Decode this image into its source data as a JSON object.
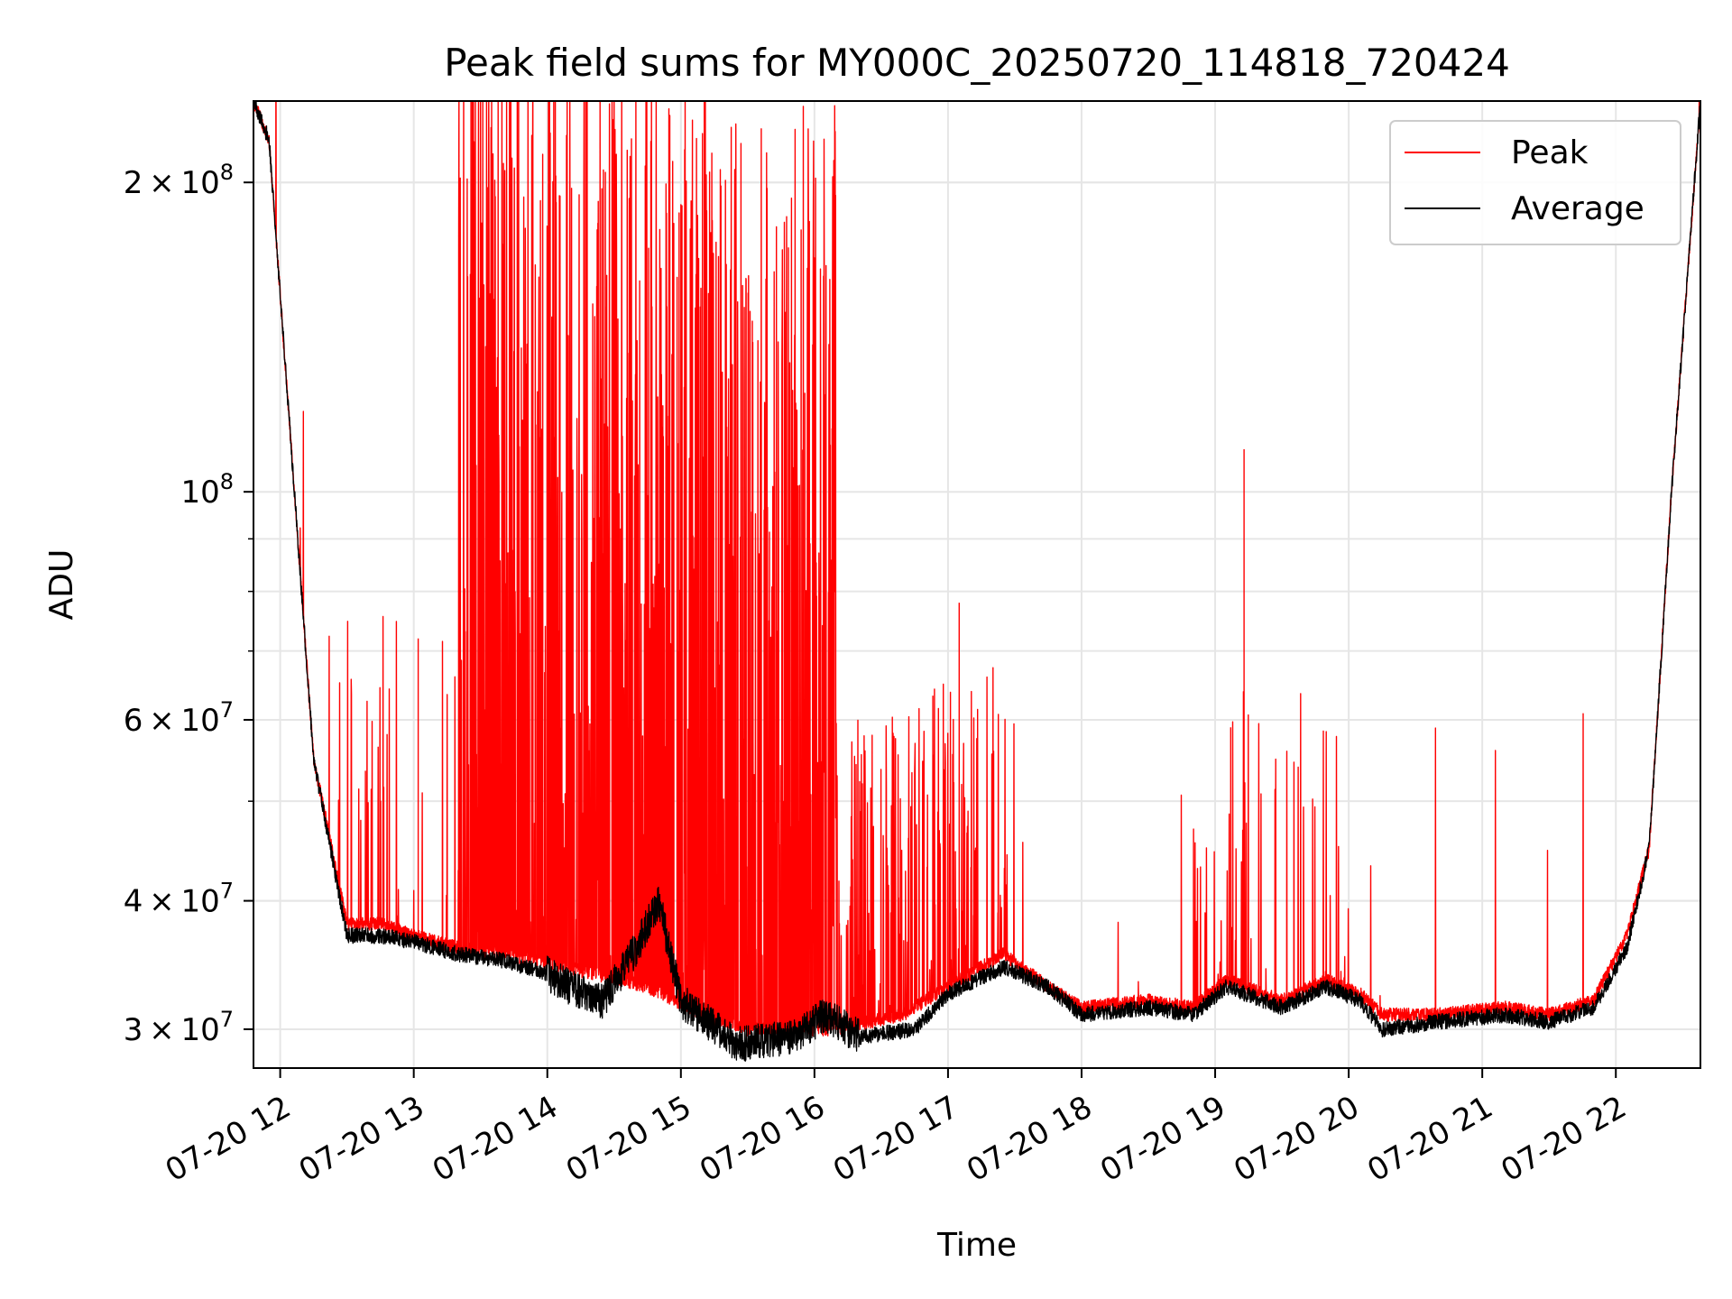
{
  "chart_data": {
    "type": "line",
    "title": "Peak field sums for MY000C_20250720_114818_720424",
    "xlabel": "Time",
    "ylabel": "ADU",
    "yscale": "log",
    "ylim": [
      27500000,
      240000000
    ],
    "xlim": [
      "2025-07-20 11:48",
      "2025-07-20 22:38"
    ],
    "grid": true,
    "legend_position": "top-right",
    "x_ticks": [
      "07-20 12",
      "07-20 13",
      "07-20 14",
      "07-20 15",
      "07-20 16",
      "07-20 17",
      "07-20 18",
      "07-20 19",
      "07-20 20",
      "07-20 21",
      "07-20 22"
    ],
    "x_tick_times": [
      "2025-07-20 12:00",
      "2025-07-20 13:00",
      "2025-07-20 14:00",
      "2025-07-20 15:00",
      "2025-07-20 16:00",
      "2025-07-20 17:00",
      "2025-07-20 18:00",
      "2025-07-20 19:00",
      "2025-07-20 20:00",
      "2025-07-20 21:00",
      "2025-07-20 22:00"
    ],
    "y_major_ticks": [
      {
        "value": 100000000,
        "mantissa": "",
        "exp": "8",
        "label": "10^8"
      },
      {
        "value": 200000000,
        "mantissa": "2",
        "exp": "8",
        "label": "2×10^8"
      },
      {
        "value": 30000000,
        "mantissa": "3",
        "exp": "7",
        "label": "3×10^7"
      },
      {
        "value": 40000000,
        "mantissa": "4",
        "exp": "7",
        "label": "4×10^7"
      },
      {
        "value": 60000000,
        "mantissa": "6",
        "exp": "7",
        "label": "6×10^7"
      }
    ],
    "y_minor_ticks": [
      30000000,
      40000000,
      50000000,
      60000000,
      70000000,
      80000000,
      90000000,
      200000000
    ],
    "series": [
      {
        "name": "Peak",
        "color": "#ff0000",
        "x": [
          "2025-07-20 11:48",
          "2025-07-20 11:55",
          "2025-07-20 12:05",
          "2025-07-20 12:15",
          "2025-07-20 12:30",
          "2025-07-20 12:45",
          "2025-07-20 13:00",
          "2025-07-20 13:20",
          "2025-07-20 13:40",
          "2025-07-20 13:55",
          "2025-07-20 14:20",
          "2025-07-20 14:45",
          "2025-07-20 15:10",
          "2025-07-20 15:30",
          "2025-07-20 15:50",
          "2025-07-20 16:10",
          "2025-07-20 16:40",
          "2025-07-20 17:00",
          "2025-07-20 17:25",
          "2025-07-20 17:45",
          "2025-07-20 18:00",
          "2025-07-20 18:30",
          "2025-07-20 18:50",
          "2025-07-20 19:05",
          "2025-07-20 19:30",
          "2025-07-20 19:50",
          "2025-07-20 20:05",
          "2025-07-20 20:15",
          "2025-07-20 20:40",
          "2025-07-20 21:10",
          "2025-07-20 21:30",
          "2025-07-20 21:50",
          "2025-07-20 22:05",
          "2025-07-20 22:15",
          "2025-07-20 22:25",
          "2025-07-20 22:38"
        ],
        "values": [
          240000000,
          220000000,
          110000000,
          55000000,
          38000000,
          38000000,
          37000000,
          36000000,
          35500000,
          35000000,
          34000000,
          33000000,
          31000000,
          30000000,
          30000000,
          30000000,
          31000000,
          33000000,
          35500000,
          33000000,
          31500000,
          32000000,
          31500000,
          33500000,
          32000000,
          33500000,
          32500000,
          31000000,
          31000000,
          31500000,
          31000000,
          32000000,
          37000000,
          45000000,
          100000000,
          240000000
        ]
      },
      {
        "name": "Average",
        "color": "#000000",
        "x": [
          "2025-07-20 11:48",
          "2025-07-20 11:55",
          "2025-07-20 12:05",
          "2025-07-20 12:15",
          "2025-07-20 12:30",
          "2025-07-20 12:45",
          "2025-07-20 13:00",
          "2025-07-20 13:20",
          "2025-07-20 13:40",
          "2025-07-20 14:00",
          "2025-07-20 14:10",
          "2025-07-20 14:25",
          "2025-07-20 14:40",
          "2025-07-20 14:50",
          "2025-07-20 15:00",
          "2025-07-20 15:25",
          "2025-07-20 15:50",
          "2025-07-20 16:05",
          "2025-07-20 16:20",
          "2025-07-20 16:45",
          "2025-07-20 17:00",
          "2025-07-20 17:25",
          "2025-07-20 17:45",
          "2025-07-20 18:00",
          "2025-07-20 18:30",
          "2025-07-20 18:50",
          "2025-07-20 19:05",
          "2025-07-20 19:30",
          "2025-07-20 19:50",
          "2025-07-20 20:05",
          "2025-07-20 20:15",
          "2025-07-20 20:40",
          "2025-07-20 21:10",
          "2025-07-20 21:30",
          "2025-07-20 21:50",
          "2025-07-20 22:05",
          "2025-07-20 22:15",
          "2025-07-20 22:25",
          "2025-07-20 22:38"
        ],
        "values": [
          240000000,
          220000000,
          110000000,
          55000000,
          37000000,
          37000000,
          36500000,
          35500000,
          35000000,
          34000000,
          33000000,
          32000000,
          36000000,
          40000000,
          32000000,
          29000000,
          29500000,
          31000000,
          29500000,
          30000000,
          32500000,
          34500000,
          33000000,
          31000000,
          31500000,
          31000000,
          33000000,
          31500000,
          33000000,
          32000000,
          30000000,
          30500000,
          31000000,
          30500000,
          31500000,
          36000000,
          45000000,
          100000000,
          240000000
        ]
      }
    ]
  }
}
